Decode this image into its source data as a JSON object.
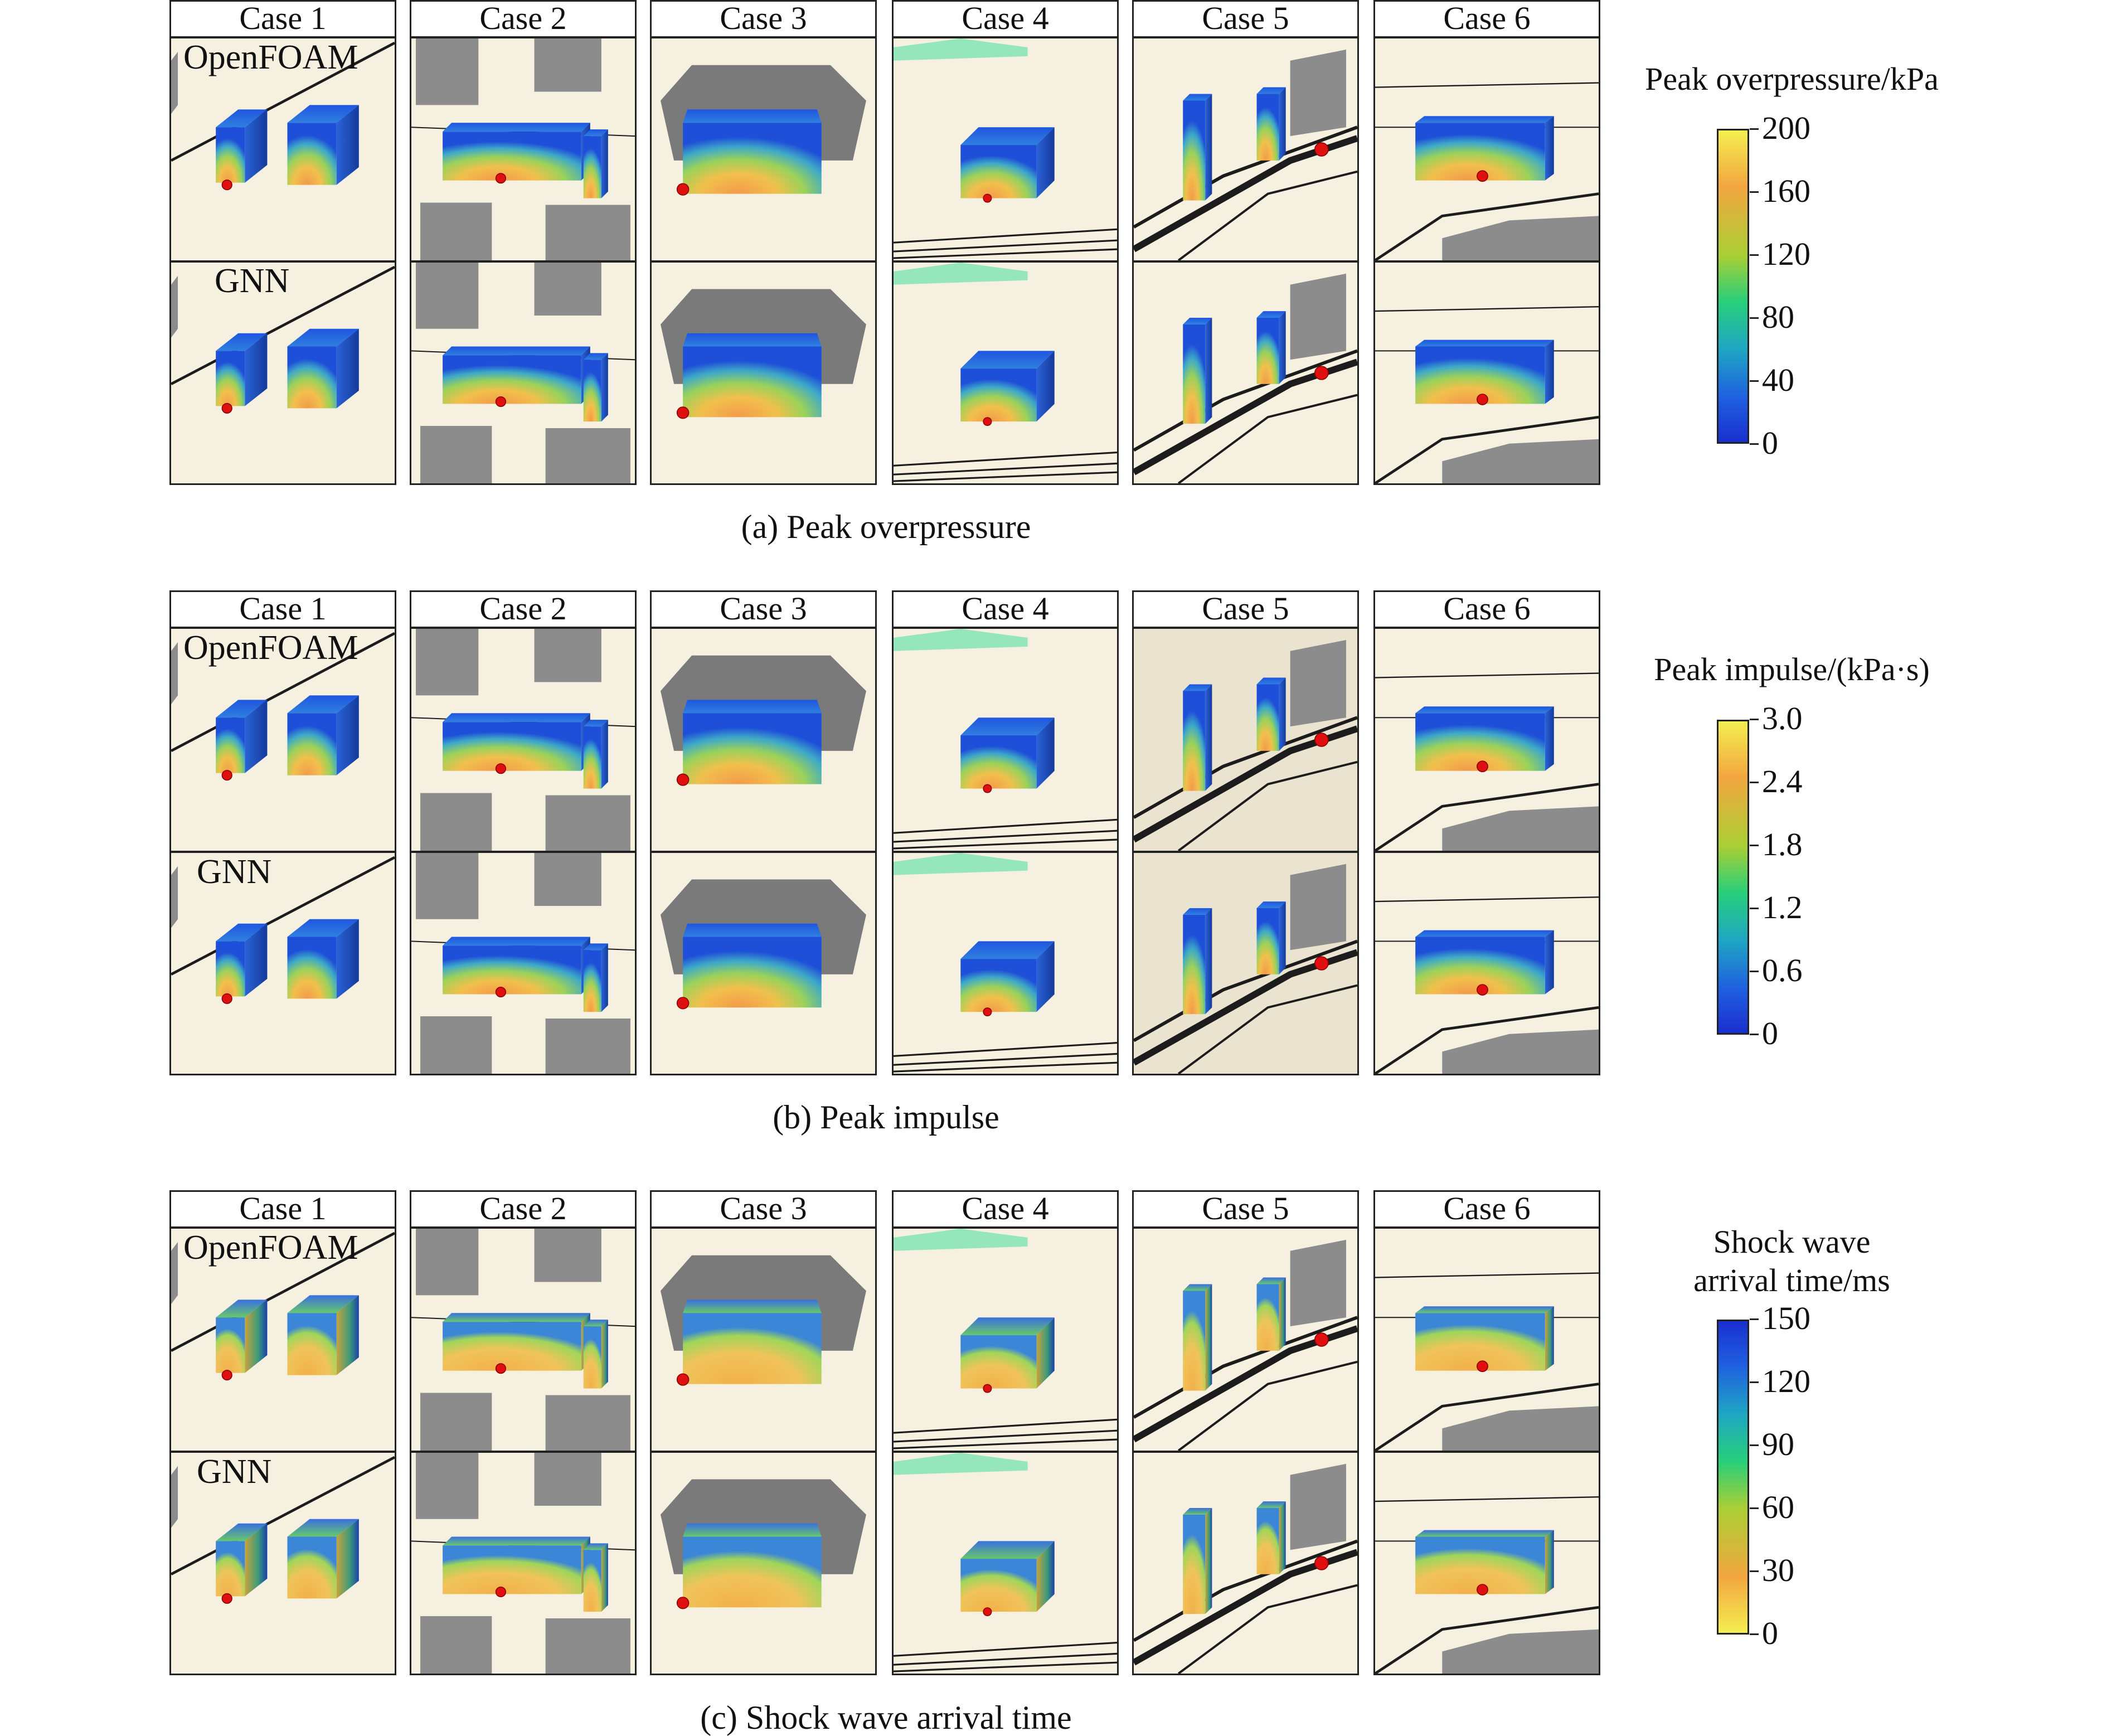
{
  "columns": [
    "Case 1",
    "Case 2",
    "Case 3",
    "Case 4",
    "Case 5",
    "Case 6"
  ],
  "row_labels": [
    "OpenFOAM",
    "GNN"
  ],
  "panels": [
    {
      "caption": "(a) Peak overpressure",
      "colorbar": {
        "title_lines": [
          "Peak overpressure/kPa"
        ],
        "ticks": [
          "200",
          "160",
          "120",
          "80",
          "40",
          "0"
        ],
        "colormap": "turbo-like",
        "direction": "max-top"
      }
    },
    {
      "caption": "(b) Peak impulse",
      "colorbar": {
        "title_lines": [
          "Peak impulse/(kPa·s)"
        ],
        "ticks": [
          "3.0",
          "2.4",
          "1.8",
          "1.2",
          "0.6",
          "0"
        ],
        "colormap": "turbo-like",
        "direction": "max-top"
      }
    },
    {
      "caption": "(c) Shock wave arrival time",
      "colorbar": {
        "title_lines": [
          "Shock wave",
          "arrival time/ms"
        ],
        "ticks": [
          "150",
          "120",
          "90",
          "60",
          "30",
          "0"
        ],
        "colormap": "turbo-like reversed",
        "direction": "max-top"
      }
    }
  ],
  "colors": {
    "ground": "#f6f0e1",
    "building_gray": "#8c8c8c",
    "road": "#1c1c1c",
    "charge_marker": "#e01010",
    "water": "#7ee3b3"
  }
}
